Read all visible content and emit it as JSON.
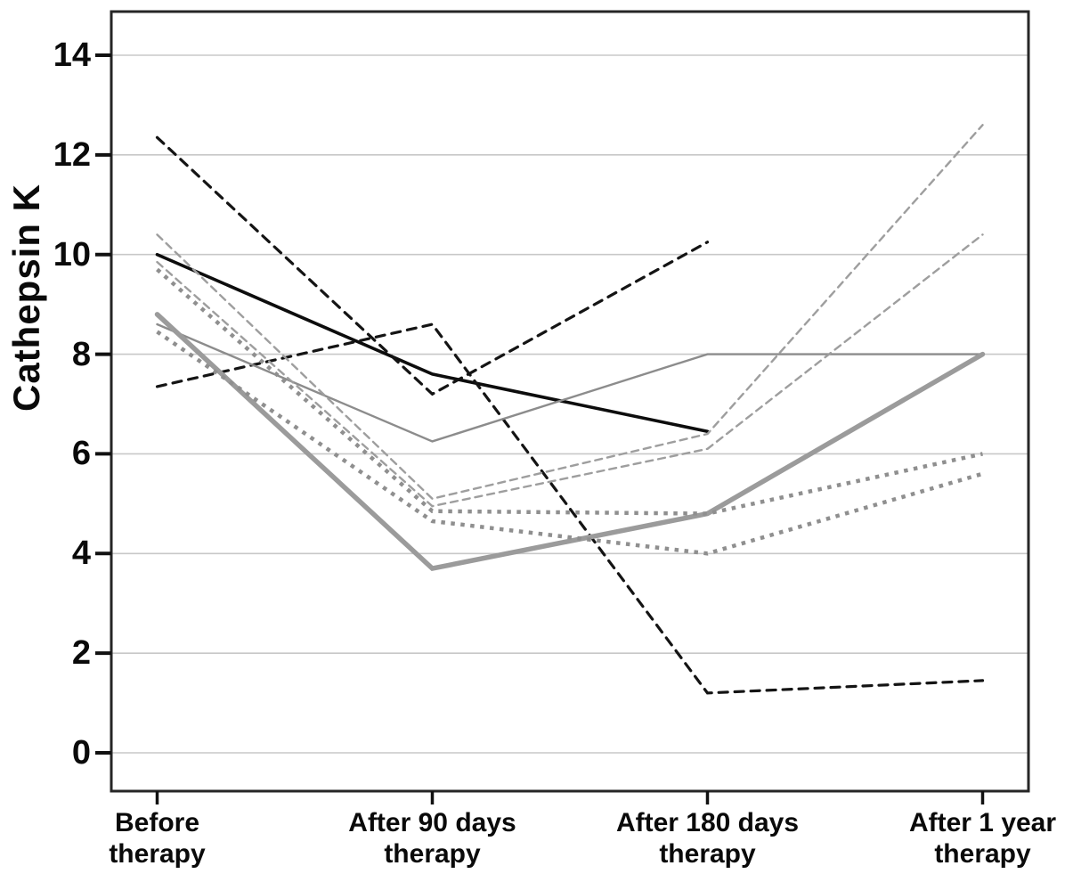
{
  "figure": {
    "background": "#ffffff",
    "frame_color": "#262626",
    "grid_color": "#c8c8c8",
    "tick_color": "#111111",
    "text_color": "#0a0a0a"
  },
  "chart_data": {
    "type": "line",
    "title": "",
    "xlabel": "",
    "ylabel": "Cathepsin K",
    "ylim": [
      0,
      14
    ],
    "yticks": [
      0,
      2,
      4,
      6,
      8,
      10,
      12,
      14
    ],
    "grid": "horizontal",
    "legend_position": "none",
    "categories": [
      [
        "Before",
        "therapy"
      ],
      [
        "After 90 days",
        "therapy"
      ],
      [
        "After 180 days",
        "therapy"
      ],
      [
        "After 1 year",
        "therapy"
      ]
    ],
    "series": [
      {
        "name": "patient-black-solid",
        "style": "solid",
        "color": "#0d0d0d",
        "width": 3.6,
        "values": [
          10.0,
          7.6,
          6.45,
          null
        ]
      },
      {
        "name": "patient-black-dashed-1",
        "style": "dashed",
        "color": "#141414",
        "width": 3.2,
        "values": [
          12.35,
          7.2,
          10.25,
          null
        ]
      },
      {
        "name": "patient-black-dashed-2",
        "style": "dashed",
        "color": "#141414",
        "width": 3.2,
        "values": [
          7.35,
          8.6,
          1.2,
          1.45
        ]
      },
      {
        "name": "patient-gray-solid-thin",
        "style": "solid",
        "color": "#8c8c8c",
        "width": 2.4,
        "values": [
          8.6,
          6.25,
          8.0,
          8.0
        ]
      },
      {
        "name": "patient-gray-solid-thick",
        "style": "solid",
        "color": "#9b9b9b",
        "width": 5.5,
        "values": [
          8.8,
          3.7,
          4.8,
          8.0
        ]
      },
      {
        "name": "patient-gray-dashed-1",
        "style": "dashed",
        "color": "#9e9e9e",
        "width": 2.4,
        "values": [
          10.4,
          5.1,
          6.4,
          12.6
        ]
      },
      {
        "name": "patient-gray-dashed-2",
        "style": "dashed",
        "color": "#9e9e9e",
        "width": 2.4,
        "values": [
          9.85,
          4.95,
          6.1,
          10.4
        ]
      },
      {
        "name": "patient-gray-dotted-1",
        "style": "dotted",
        "color": "#8f8f8f",
        "width": 4.5,
        "values": [
          9.7,
          4.85,
          4.8,
          6.0
        ]
      },
      {
        "name": "patient-gray-dotted-2",
        "style": "dotted",
        "color": "#8f8f8f",
        "width": 4.5,
        "values": [
          8.45,
          4.65,
          4.0,
          5.6
        ]
      }
    ]
  }
}
